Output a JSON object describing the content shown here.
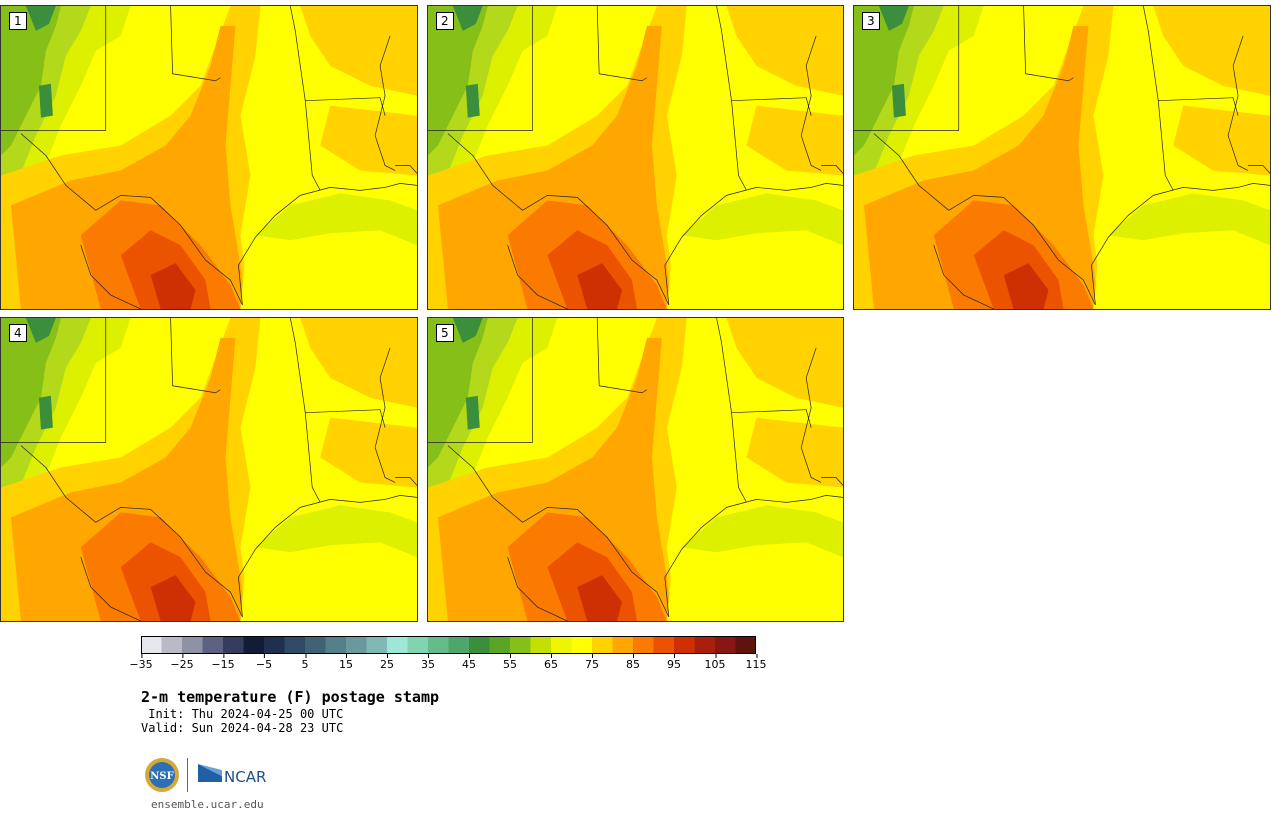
{
  "panels": [
    {
      "label": "1"
    },
    {
      "label": "2"
    },
    {
      "label": "3"
    },
    {
      "label": "4"
    },
    {
      "label": "5"
    }
  ],
  "colorbar": {
    "tick_labels": [
      "−35",
      "−25",
      "−15",
      "−5",
      "5",
      "15",
      "25",
      "35",
      "45",
      "55",
      "65",
      "75",
      "85",
      "95",
      "105",
      "115"
    ],
    "min": -35,
    "max": 120,
    "step": 5,
    "colors": [
      "#e6e6ee",
      "#b9b9c8",
      "#8f91a6",
      "#5d6282",
      "#353d5e",
      "#111c36",
      "#1f2f4f",
      "#2e4a65",
      "#3f6275",
      "#54808a",
      "#69999d",
      "#7fb8b5",
      "#9ee6d6",
      "#82d4b0",
      "#67bb8a",
      "#4fa66b",
      "#3b8f3c",
      "#5ba526",
      "#86bf18",
      "#c4e000",
      "#eef500",
      "#ffff00",
      "#ffd200",
      "#ffa700",
      "#fb7a00",
      "#ec5300",
      "#cf3003",
      "#a8200c",
      "#871712",
      "#5e140d"
    ]
  },
  "title": "2-m temperature (F) postage stamp",
  "init": " Init: Thu 2024-04-25 00 UTC",
  "valid": "Valid: Sun 2024-04-28 23 UTC",
  "logos": {
    "nsf": "NSF",
    "ncar": "NCAR"
  },
  "site": "ensemble.ucar.edu"
}
